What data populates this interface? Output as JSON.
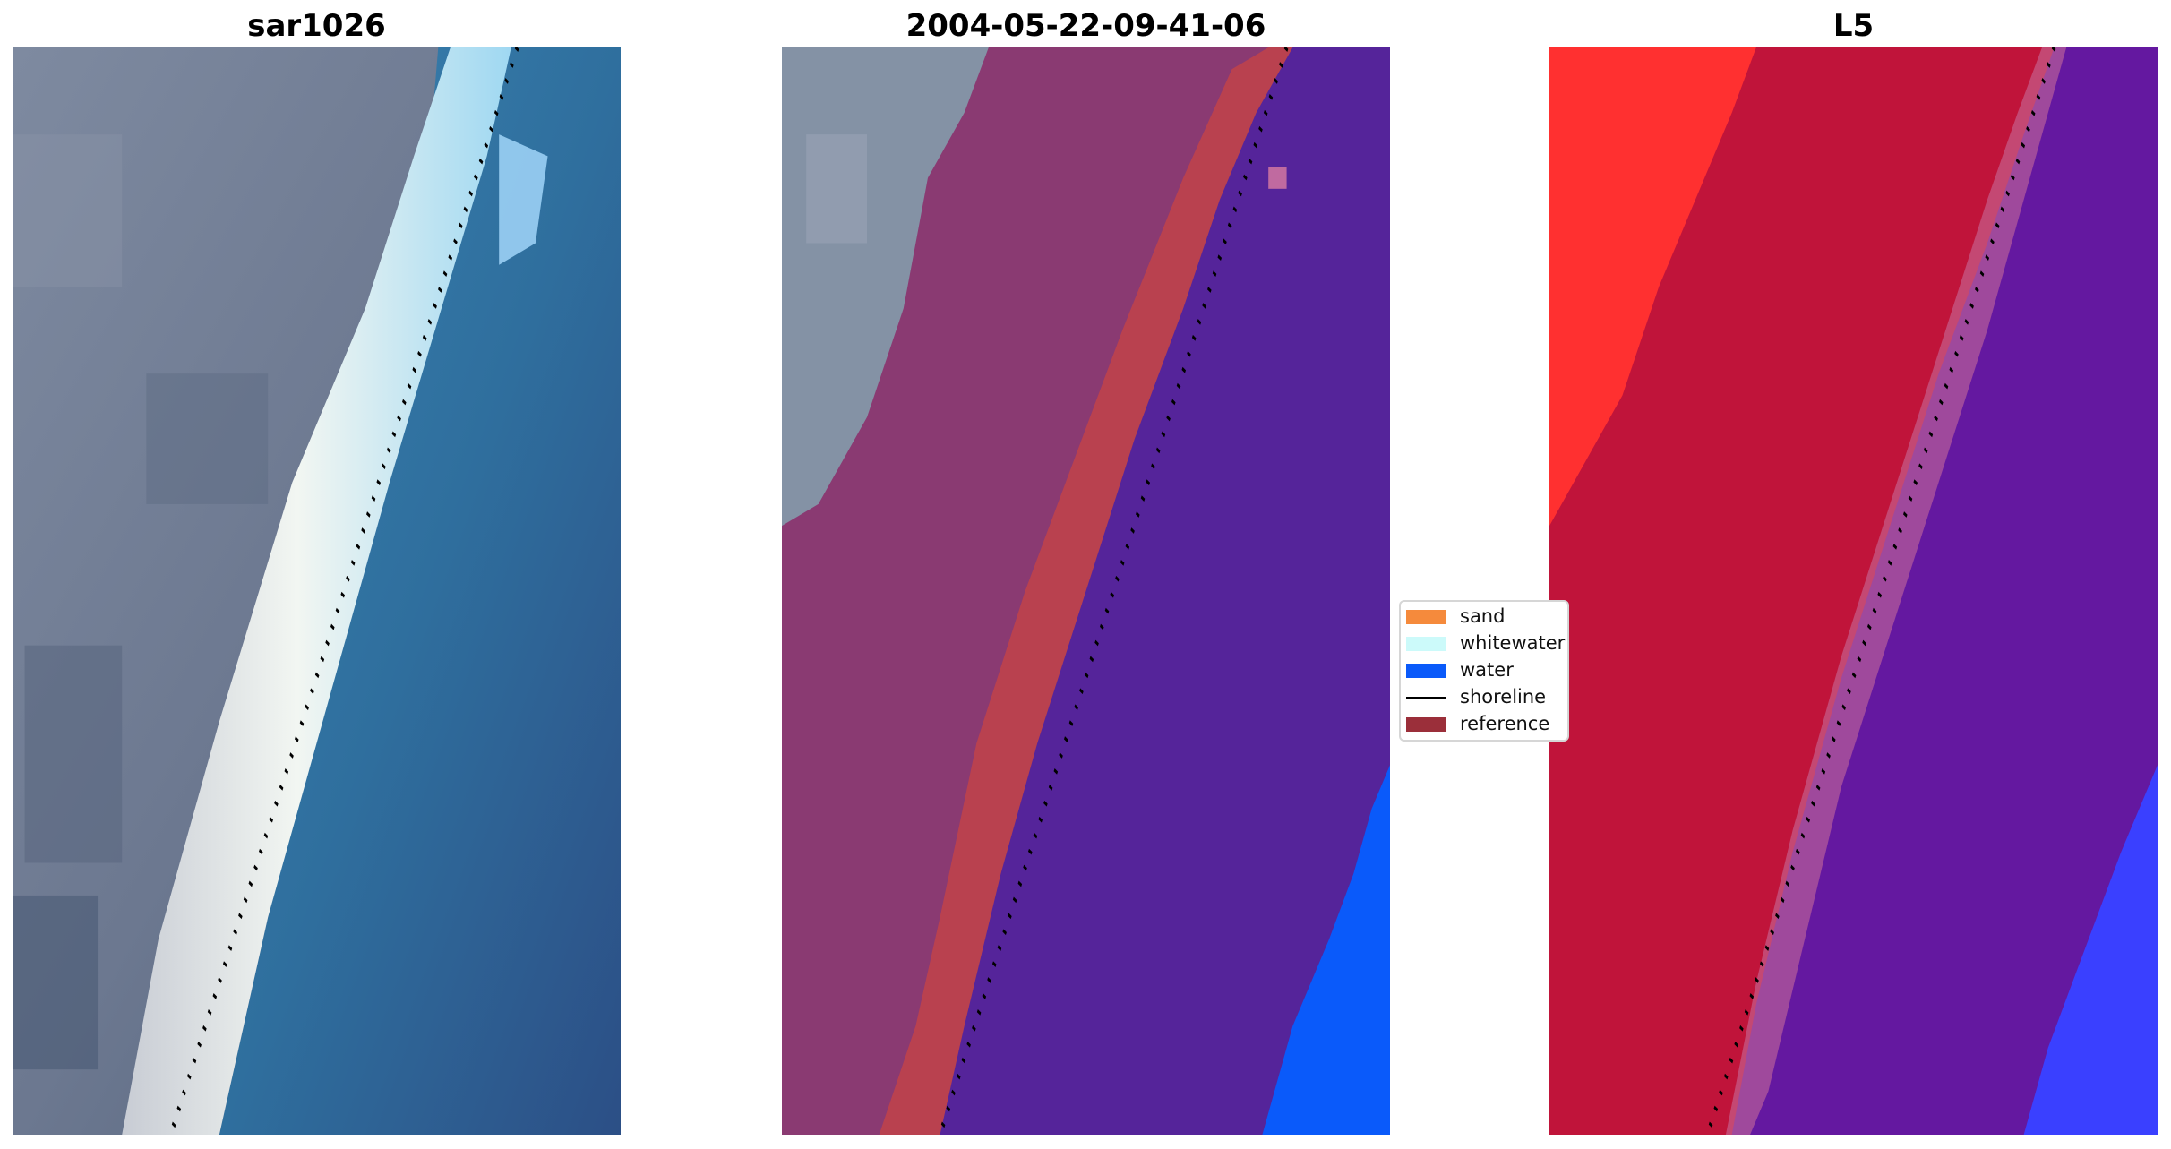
{
  "panels": [
    {
      "title": "sar1026",
      "kind": "rgb"
    },
    {
      "title": "2004-05-22-09-41-06",
      "kind": "classification"
    },
    {
      "title": "L5",
      "kind": "index"
    }
  ],
  "legend": {
    "items": [
      {
        "label": "sand",
        "color": "#f58a3c",
        "type": "patch"
      },
      {
        "label": "whitewater",
        "color": "#ccfafa",
        "type": "patch"
      },
      {
        "label": "water",
        "color": "#0a5afa",
        "type": "patch"
      },
      {
        "label": "shoreline",
        "color": "#000000",
        "type": "line"
      },
      {
        "label": "reference",
        "color": "#9b2f3a",
        "type": "patch"
      }
    ]
  },
  "colors": {
    "land_gray": "#6f7c92",
    "surf_white": "#eef3f0",
    "water_blue": "#2e6aa0",
    "class_land": "#8a3a72",
    "class_buffer": "#b9414f",
    "class_water": "#55249a",
    "class_water_bright": "#0a5afa",
    "index_red": "#c0143a",
    "index_red_bright": "#ff3030",
    "index_purple": "#6418a0",
    "index_blue": "#3a40ff"
  }
}
